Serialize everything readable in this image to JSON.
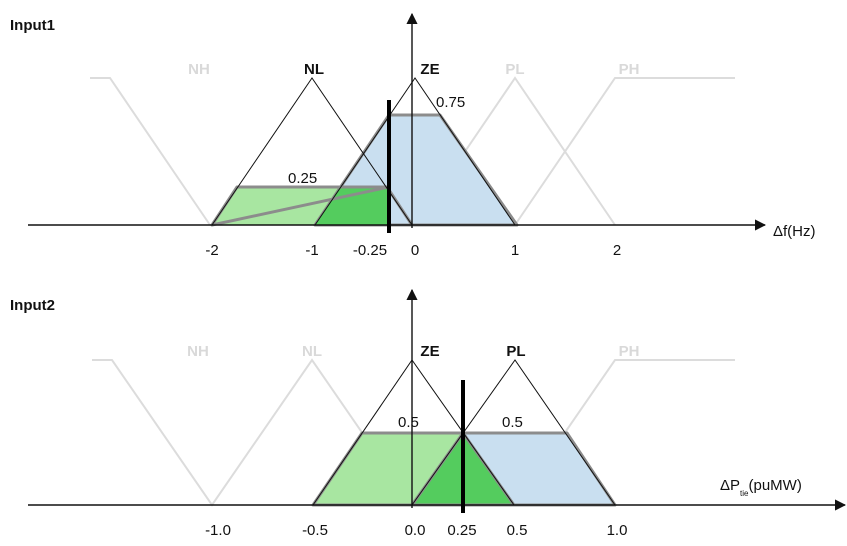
{
  "input1": {
    "title": "Input1",
    "axis_label": "Δf(Hz)",
    "tick_labels": [
      "-2",
      "-1",
      "-0.25",
      "0",
      "1",
      "2"
    ],
    "sets": [
      {
        "name": "NH",
        "peak": -3,
        "active": false
      },
      {
        "name": "NL",
        "peak": -1,
        "active": true
      },
      {
        "name": "ZE",
        "peak": 0,
        "active": true
      },
      {
        "name": "PL",
        "peak": 1,
        "active": false
      },
      {
        "name": "PH",
        "peak": 2,
        "active": false
      }
    ],
    "crisp_input": -0.25,
    "memberships": {
      "NL": "0.25",
      "ZE": "0.75"
    }
  },
  "input2": {
    "title": "Input2",
    "axis_label_main": "ΔP",
    "axis_label_sub": "tie",
    "axis_label_unit": "(puMW)",
    "tick_labels": [
      "-1.0",
      "-0.5",
      "0.0",
      "0.25",
      "0.5",
      "1.0"
    ],
    "sets": [
      {
        "name": "NH",
        "peak": -1.0,
        "active": false
      },
      {
        "name": "NL",
        "peak": -0.5,
        "active": false
      },
      {
        "name": "ZE",
        "peak": 0.0,
        "active": true
      },
      {
        "name": "PL",
        "peak": 0.5,
        "active": true
      },
      {
        "name": "PH",
        "peak": 1.0,
        "active": false
      }
    ],
    "crisp_input": 0.25,
    "memberships": {
      "ZE": "0.5",
      "PL": "0.5"
    }
  },
  "colors": {
    "light_green": "#a8e6a1",
    "mid_green": "#54cc5e",
    "light_blue": "#c9dff0",
    "outline_gray": "#8c8c8c",
    "faded_line": "#dcdcdc"
  }
}
